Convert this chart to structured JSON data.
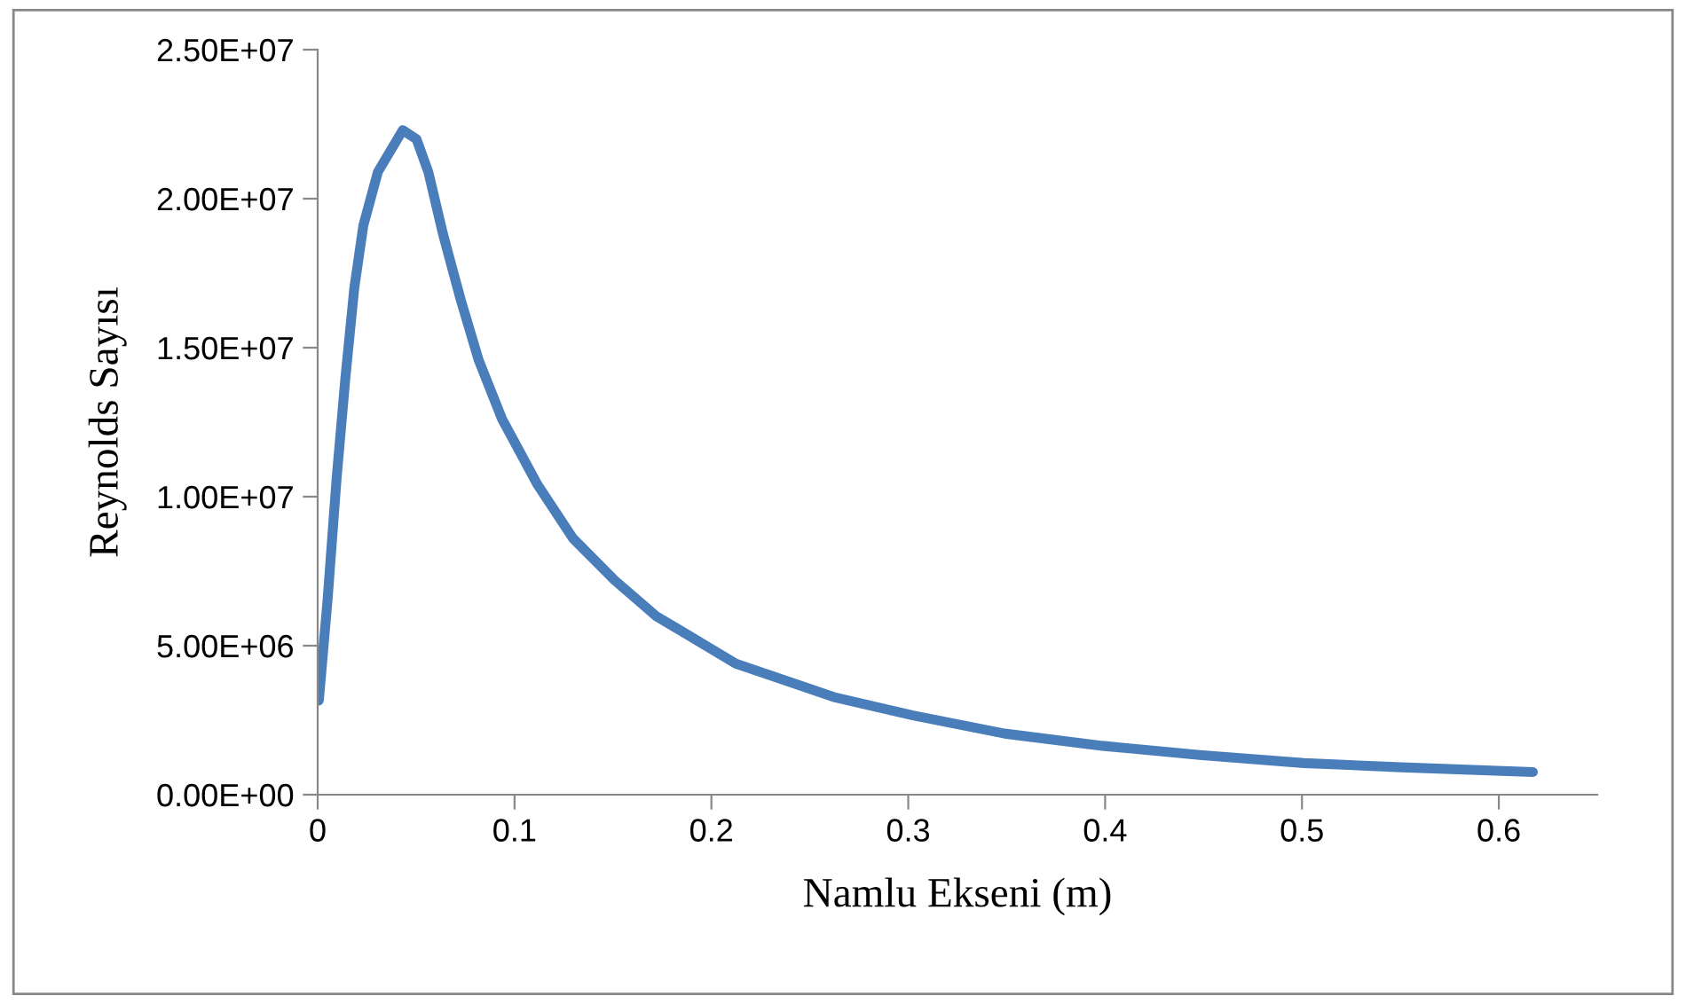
{
  "chart_data": {
    "type": "line",
    "xlabel": "Namlu Ekseni (m)",
    "ylabel": "Reynolds Sayısı",
    "xlim": [
      0,
      0.65
    ],
    "xticks": [
      0,
      0.1,
      0.2,
      0.3,
      0.4,
      0.5,
      0.6
    ],
    "ylim": [
      0,
      25000000
    ],
    "yticks": [
      {
        "value": 0,
        "label": "0.00E+00"
      },
      {
        "value": 5000000,
        "label": "5.00E+06"
      },
      {
        "value": 10000000,
        "label": "1.00E+07"
      },
      {
        "value": 15000000,
        "label": "1.50E+07"
      },
      {
        "value": 20000000,
        "label": "2.00E+07"
      },
      {
        "value": 25000000,
        "label": "2.50E+07"
      }
    ],
    "grid": false,
    "marker": "none",
    "line_style": "solid",
    "series": [
      {
        "color": "#4a7ebb",
        "x": [
          0.0006,
          0.0051,
          0.0096,
          0.0141,
          0.0186,
          0.0232,
          0.0306,
          0.0432,
          0.0502,
          0.0562,
          0.0637,
          0.0727,
          0.0817,
          0.0937,
          0.1117,
          0.1297,
          0.1508,
          0.1718,
          0.2124,
          0.262,
          0.3024,
          0.349,
          0.3986,
          0.448,
          0.501,
          0.5505,
          0.6173
        ],
        "values": [
          3160000,
          6600000,
          10600000,
          14000000,
          17000000,
          19100000,
          20900000,
          22300000,
          22000000,
          20900000,
          18800000,
          16600000,
          14600000,
          12600000,
          10400000,
          8600000,
          7200000,
          6000000,
          4400000,
          3280000,
          2660000,
          2050000,
          1640000,
          1330000,
          1060000,
          920000,
          760000
        ]
      }
    ]
  }
}
